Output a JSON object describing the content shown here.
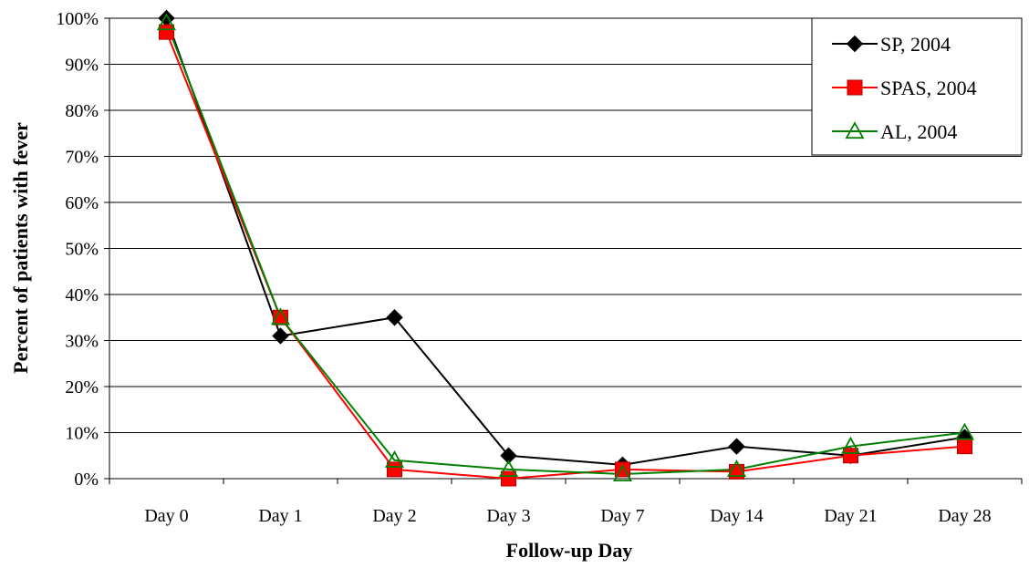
{
  "chart_data": {
    "type": "line",
    "title": "",
    "xlabel": "Follow-up Day",
    "ylabel": "Percent of patients with fever",
    "categories": [
      "Day 0",
      "Day 1",
      "Day 2",
      "Day 3",
      "Day 7",
      "Day 14",
      "Day 21",
      "Day 28"
    ],
    "ylim": [
      0,
      100
    ],
    "y_ticks": [
      "0%",
      "10%",
      "20%",
      "30%",
      "40%",
      "50%",
      "60%",
      "70%",
      "80%",
      "90%",
      "100%"
    ],
    "grid": "horizontal",
    "legend_position": "top-right",
    "series": [
      {
        "name": "SP, 2004",
        "color": "#000000",
        "marker": "diamond",
        "values": [
          100,
          31,
          35,
          5,
          3,
          7,
          5,
          9
        ]
      },
      {
        "name": "SPAS, 2004",
        "color": "#ff0000",
        "marker": "square",
        "values": [
          97,
          35,
          2,
          0,
          2,
          1.5,
          5,
          7
        ]
      },
      {
        "name": "AL, 2004",
        "color": "#008000",
        "marker": "triangle-open",
        "values": [
          99,
          35,
          4,
          2,
          1,
          2,
          7,
          10
        ]
      }
    ]
  }
}
